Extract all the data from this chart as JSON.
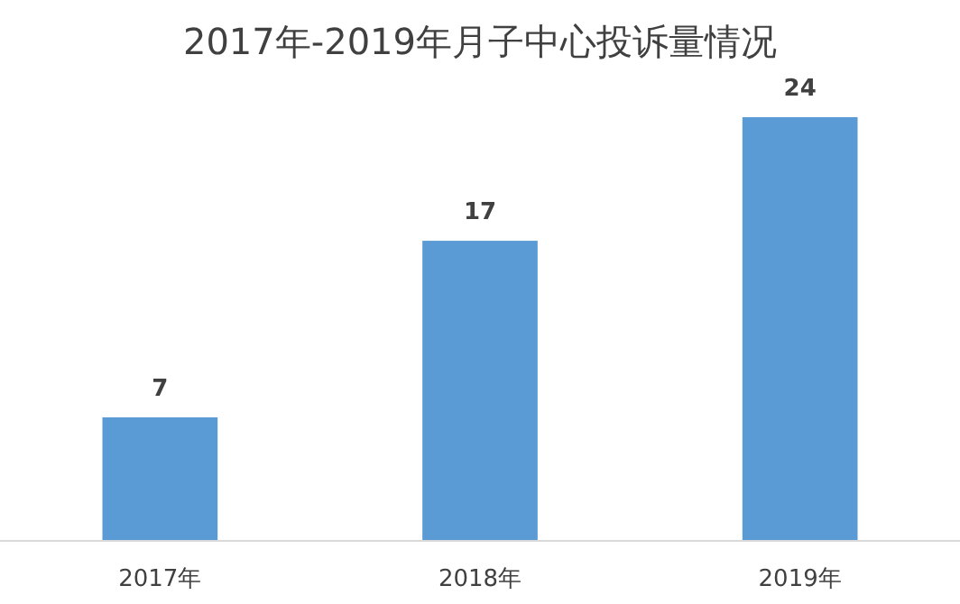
{
  "chart_data": {
    "type": "bar",
    "title": "2017年-2019年月子中心投诉量情况",
    "categories": [
      "2017年",
      "2018年",
      "2019年"
    ],
    "values": [
      7,
      17,
      24
    ],
    "color": "#5b9bd5",
    "data_labels": true
  }
}
